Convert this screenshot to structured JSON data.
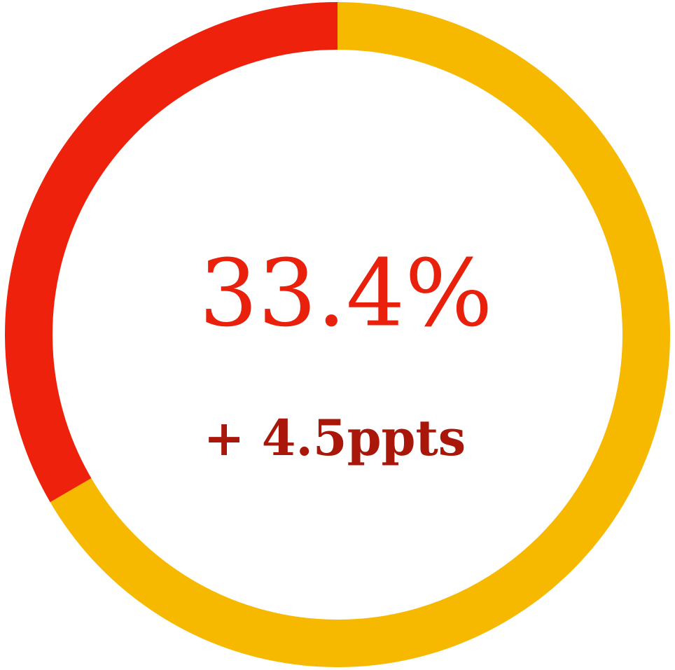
{
  "chart_data": {
    "type": "pie",
    "values": [
      33.4,
      66.6
    ],
    "value_labels": [
      "33.4%",
      null
    ],
    "colors": [
      "#ee220c",
      "#f6b900"
    ],
    "direction": "counterclockwise",
    "annotation": "+ 4.5ppts"
  }
}
